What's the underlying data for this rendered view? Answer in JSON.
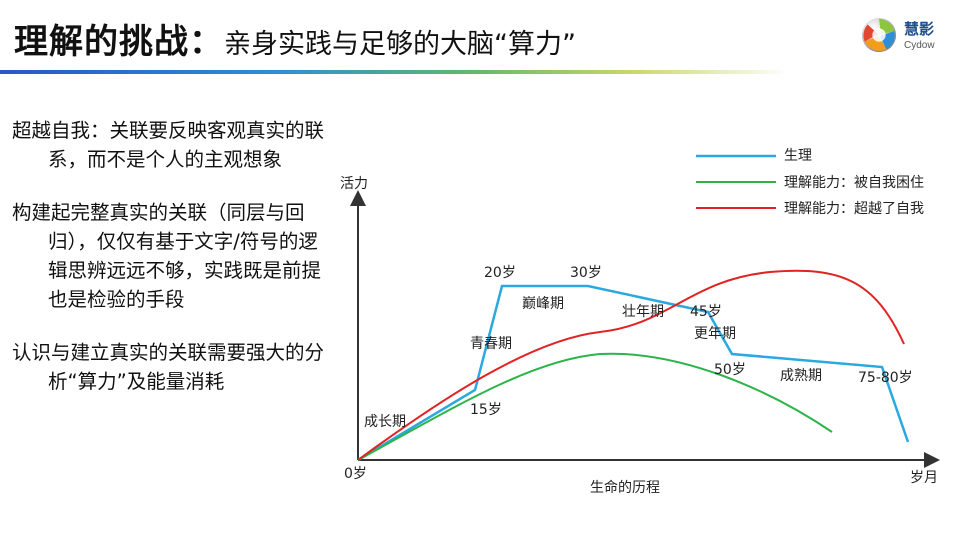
{
  "title": {
    "main": "理解的挑战：",
    "sub": "亲身实践与足够的大脑“算力”"
  },
  "logo": {
    "name_cn": "慧影",
    "name_en": "Cydow"
  },
  "bullets": [
    "超越自我：关联要反映客观真实的联系，而不是个人的主观想象",
    "构建起完整真实的关联（同层与回归），仅仅有基于文字/符号的逻辑思辨远远不够，实践既是前提也是检验的手段",
    "认识与建立真实的关联需要强大的分析“算力”及能量消耗"
  ],
  "chart_data": {
    "type": "line",
    "ylabel": "活力",
    "xlabel": "生命的历程",
    "x_end_label": "岁月",
    "origin_label": "0岁",
    "legend_position": "top-right",
    "series": [
      {
        "name": "生理",
        "color": "#2aa9e0"
      },
      {
        "name": "理解能力：被自我困住",
        "color": "#2cb34a"
      },
      {
        "name": "理解能力：超越了自我",
        "color": "#e02424"
      }
    ],
    "annotations": [
      {
        "id": "chengzhangqi",
        "text": "成长期"
      },
      {
        "id": "age15",
        "text": "15岁"
      },
      {
        "id": "qingchunqi",
        "text": "青春期"
      },
      {
        "id": "age20",
        "text": "20岁"
      },
      {
        "id": "age30",
        "text": "30岁"
      },
      {
        "id": "dianfengqi",
        "text": "巅峰期"
      },
      {
        "id": "zhuangnianqi",
        "text": "壮年期"
      },
      {
        "id": "age45",
        "text": "45岁"
      },
      {
        "id": "gengnianqi",
        "text": "更年期"
      },
      {
        "id": "age50",
        "text": "50岁"
      },
      {
        "id": "chengshuqi",
        "text": "成熟期"
      },
      {
        "id": "age75",
        "text": "75-80岁"
      }
    ]
  }
}
